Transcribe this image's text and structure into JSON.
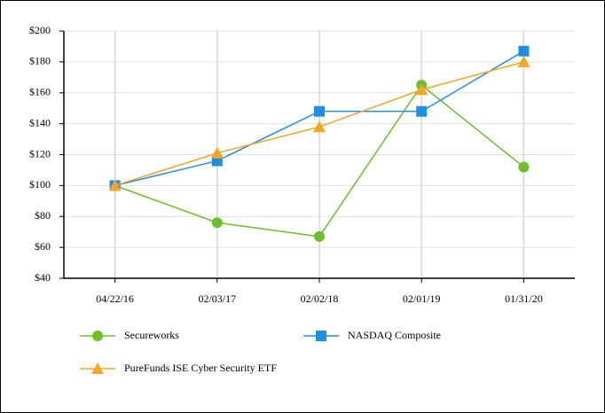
{
  "chart_data": {
    "type": "line",
    "categories": [
      "04/22/16",
      "02/03/17",
      "02/02/18",
      "02/01/19",
      "01/31/20"
    ],
    "series": [
      {
        "name": "Secureworks",
        "color": "#6cbf2b",
        "marker": "circle",
        "values": [
          100,
          76,
          67,
          165,
          112
        ]
      },
      {
        "name": "NASDAQ Composite",
        "color": "#1b8fe3",
        "marker": "square",
        "values": [
          100,
          116,
          148,
          148,
          187
        ]
      },
      {
        "name": "PureFunds ISE Cyber Security ETF",
        "color": "#f5a623",
        "marker": "triangle",
        "values": [
          100,
          121,
          138,
          162,
          180
        ]
      }
    ],
    "ylim": [
      40,
      200
    ],
    "yticks": [
      {
        "value": 40,
        "label": "$40"
      },
      {
        "value": 60,
        "label": "$60"
      },
      {
        "value": 80,
        "label": "$80"
      },
      {
        "value": 100,
        "label": "$100"
      },
      {
        "value": 120,
        "label": "$120"
      },
      {
        "value": 140,
        "label": "$140"
      },
      {
        "value": 160,
        "label": "$160"
      },
      {
        "value": 180,
        "label": "$180"
      },
      {
        "value": 200,
        "label": "$200"
      }
    ],
    "grid": true
  }
}
